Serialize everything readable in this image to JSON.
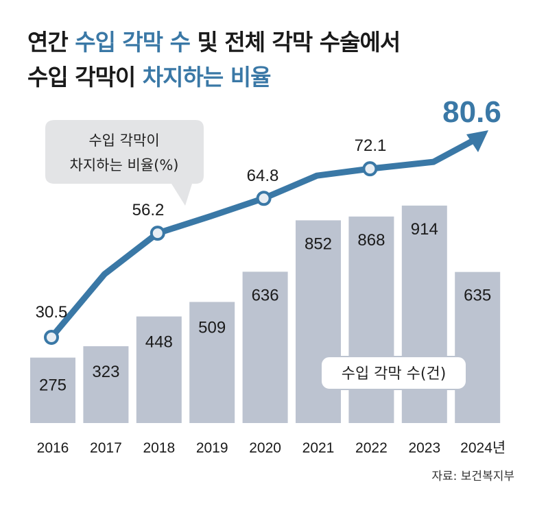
{
  "title": {
    "line1_a": "연간 ",
    "line1_b": "수입 각막 수",
    "line1_c": " 및 전체 각막 수술에서",
    "line2_a": "수입 각막이 ",
    "line2_b": "차지하는 비율"
  },
  "source": "자료: 보건복지부",
  "colors": {
    "line": "#3a78a6",
    "bar": "#bcc3d0",
    "bubble": "#e3e4e6"
  },
  "chart_data": {
    "type": "bar+line",
    "categories": [
      "2016",
      "2017",
      "2018",
      "2019",
      "2020",
      "2021",
      "2022",
      "2023",
      "2024년"
    ],
    "series": [
      {
        "name": "수입 각막 수(건)",
        "type": "bar",
        "values": [
          275,
          323,
          448,
          509,
          636,
          852,
          868,
          914,
          635
        ]
      },
      {
        "name": "수입 각막이 차지하는 비율(%)",
        "type": "line",
        "values": [
          30.5,
          46.1,
          56.2,
          60.4,
          64.8,
          70.4,
          72.1,
          73.8,
          80.6
        ],
        "labels": [
          "30.5",
          null,
          "56.2",
          null,
          "64.8",
          null,
          "72.1",
          null,
          "80.6"
        ]
      }
    ],
    "legend": {
      "line_label_1": "수입 각막이",
      "line_label_2": "차지하는 비율(%)",
      "bar_label": "수입 각막 수(건)"
    }
  }
}
